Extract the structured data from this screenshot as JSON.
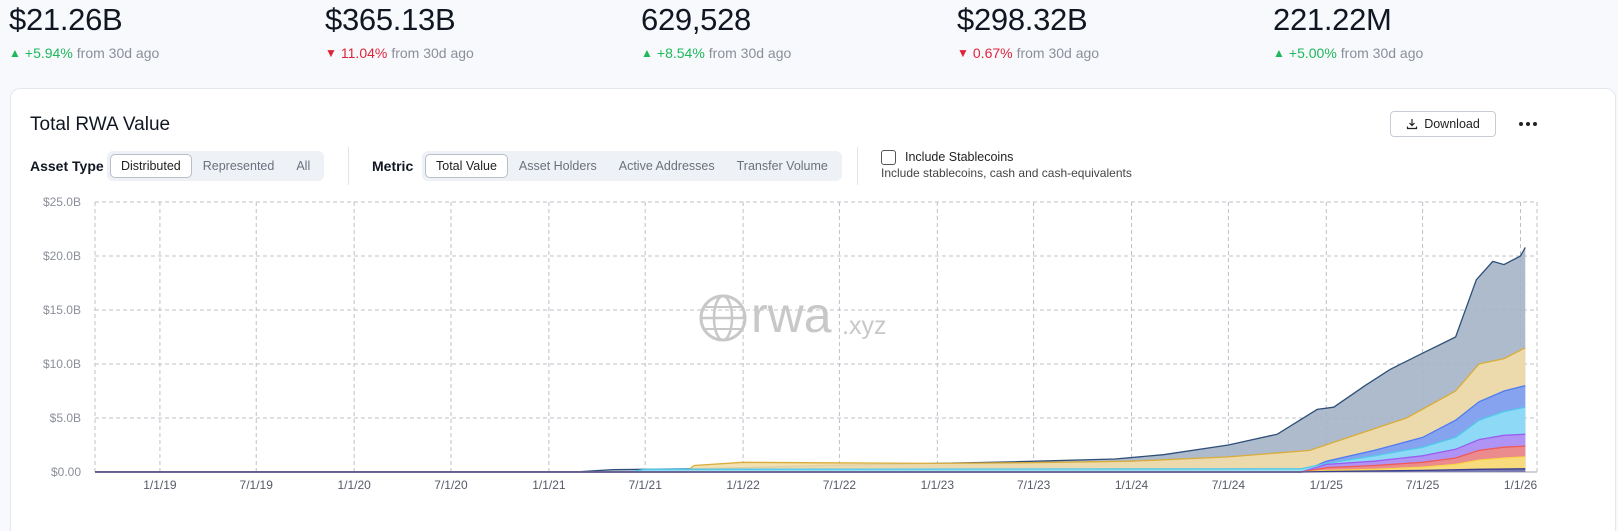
{
  "stats": [
    {
      "value": "$21.26B",
      "direction": "up",
      "change": "+5.94%",
      "suffix": "from 30d ago"
    },
    {
      "value": "$365.13B",
      "direction": "down",
      "change": "11.04%",
      "suffix": "from 30d ago"
    },
    {
      "value": "629,528",
      "direction": "up",
      "change": "+8.54%",
      "suffix": "from 30d ago"
    },
    {
      "value": "$298.32B",
      "direction": "down",
      "change": "0.67%",
      "suffix": "from 30d ago"
    },
    {
      "value": "221.22M",
      "direction": "up",
      "change": "+5.00%",
      "suffix": "from 30d ago"
    }
  ],
  "card": {
    "title": "Total RWA Value",
    "download_label": "Download",
    "more_icon": "more-horizontal-icon"
  },
  "controls": {
    "asset_type_label": "Asset Type",
    "asset_type_options": [
      "Distributed",
      "Represented",
      "All"
    ],
    "asset_type_selected": "Distributed",
    "metric_label": "Metric",
    "metric_options": [
      "Total Value",
      "Asset Holders",
      "Active Addresses",
      "Transfer Volume"
    ],
    "metric_selected": "Total Value",
    "stablecoins_label": "Include Stablecoins",
    "stablecoins_desc": "Include stablecoins, cash and cash-equivalents",
    "stablecoins_checked": false
  },
  "watermark": {
    "brand": "rwa",
    "suffix": ".xyz"
  },
  "colors": {
    "up": "#1fb85a",
    "down": "#e0243a"
  },
  "chart_data": {
    "type": "area",
    "stacked": true,
    "grid": true,
    "ylim": [
      0,
      25
    ],
    "y_unit": "B",
    "yticks": [
      {
        "value": 0,
        "label": "$0.00"
      },
      {
        "value": 5,
        "label": "$5.0B"
      },
      {
        "value": 10,
        "label": "$10.0B"
      },
      {
        "value": 15,
        "label": "$15.0B"
      },
      {
        "value": 20,
        "label": "$20.0B"
      },
      {
        "value": 25,
        "label": "$25.0B"
      }
    ],
    "xlim": [
      "2018-09-01",
      "2026-02-01"
    ],
    "xticks": [
      {
        "date": "2019-01-01",
        "label": "1/1/19"
      },
      {
        "date": "2019-07-01",
        "label": "7/1/19"
      },
      {
        "date": "2020-01-01",
        "label": "1/1/20"
      },
      {
        "date": "2020-07-01",
        "label": "7/1/20"
      },
      {
        "date": "2021-01-01",
        "label": "1/1/21"
      },
      {
        "date": "2021-07-01",
        "label": "7/1/21"
      },
      {
        "date": "2022-01-01",
        "label": "1/1/22"
      },
      {
        "date": "2022-07-01",
        "label": "7/1/22"
      },
      {
        "date": "2023-01-01",
        "label": "1/1/23"
      },
      {
        "date": "2023-07-01",
        "label": "7/1/23"
      },
      {
        "date": "2024-01-01",
        "label": "1/1/24"
      },
      {
        "date": "2024-07-01",
        "label": "7/1/24"
      },
      {
        "date": "2025-01-01",
        "label": "1/1/25"
      },
      {
        "date": "2025-07-01",
        "label": "7/1/25"
      },
      {
        "date": "2026-01-01",
        "label": "1/1/26"
      }
    ],
    "series": [
      {
        "color": "#2e4f78",
        "fill": "#a4b4c6",
        "points": [
          [
            "2018-09-01",
            0.02
          ],
          [
            "2021-03-01",
            0.03
          ],
          [
            "2021-05-01",
            0.22
          ],
          [
            "2021-10-01",
            0.3
          ],
          [
            "2022-01-01",
            0.4
          ],
          [
            "2022-06-01",
            0.6
          ],
          [
            "2023-01-01",
            0.8
          ],
          [
            "2023-06-01",
            0.95
          ],
          [
            "2023-12-01",
            1.2
          ],
          [
            "2024-03-01",
            1.6
          ],
          [
            "2024-07-01",
            2.5
          ],
          [
            "2024-10-01",
            3.5
          ],
          [
            "2024-12-15",
            5.8
          ],
          [
            "2025-01-15",
            6.0
          ],
          [
            "2025-03-15",
            8.0
          ],
          [
            "2025-05-01",
            9.5
          ],
          [
            "2025-07-01",
            11.0
          ],
          [
            "2025-09-01",
            12.5
          ],
          [
            "2025-10-10",
            17.8
          ],
          [
            "2025-11-10",
            19.5
          ],
          [
            "2025-12-01",
            19.2
          ],
          [
            "2026-01-01",
            20.0
          ],
          [
            "2026-01-10",
            20.8
          ]
        ]
      },
      {
        "color": "#d9ad3a",
        "fill": "#f3deaa",
        "points": [
          [
            "2018-09-01",
            0
          ],
          [
            "2021-09-15",
            0
          ],
          [
            "2021-10-01",
            0.6
          ],
          [
            "2022-01-01",
            0.9
          ],
          [
            "2022-06-01",
            0.85
          ],
          [
            "2023-01-01",
            0.8
          ],
          [
            "2023-06-01",
            0.85
          ],
          [
            "2024-01-01",
            1.0
          ],
          [
            "2024-07-01",
            1.4
          ],
          [
            "2024-12-01",
            2.0
          ],
          [
            "2025-03-01",
            3.5
          ],
          [
            "2025-06-01",
            5.0
          ],
          [
            "2025-09-01",
            7.5
          ],
          [
            "2025-10-15",
            10.0
          ],
          [
            "2025-12-01",
            10.5
          ],
          [
            "2026-01-10",
            11.5
          ]
        ]
      },
      {
        "color": "#4f7bf0",
        "fill": "#7b9cf7",
        "points": [
          [
            "2018-09-01",
            0
          ],
          [
            "2024-11-15",
            0
          ],
          [
            "2025-01-01",
            1.0
          ],
          [
            "2025-04-01",
            2.0
          ],
          [
            "2025-07-01",
            3.2
          ],
          [
            "2025-09-01",
            4.8
          ],
          [
            "2025-10-15",
            6.5
          ],
          [
            "2025-12-01",
            7.5
          ],
          [
            "2026-01-10",
            8.0
          ]
        ]
      },
      {
        "color": "#53c8ea",
        "fill": "#8fdff6",
        "points": [
          [
            "2018-09-01",
            0
          ],
          [
            "2021-06-01",
            0
          ],
          [
            "2021-07-01",
            0.25
          ],
          [
            "2024-11-15",
            0.3
          ],
          [
            "2025-01-01",
            0.8
          ],
          [
            "2025-04-01",
            1.5
          ],
          [
            "2025-07-01",
            2.3
          ],
          [
            "2025-09-01",
            3.2
          ],
          [
            "2025-10-15",
            4.8
          ],
          [
            "2025-12-01",
            5.6
          ],
          [
            "2026-01-10",
            6.0
          ]
        ]
      },
      {
        "color": "#9b5cf0",
        "fill": "#b48cf5",
        "points": [
          [
            "2018-09-01",
            0
          ],
          [
            "2024-11-15",
            0
          ],
          [
            "2025-01-01",
            0.7
          ],
          [
            "2025-04-01",
            1.0
          ],
          [
            "2025-07-01",
            1.5
          ],
          [
            "2025-09-01",
            2.1
          ],
          [
            "2025-10-15",
            3.0
          ],
          [
            "2025-12-01",
            3.4
          ],
          [
            "2026-01-10",
            3.5
          ]
        ]
      },
      {
        "color": "#ef5b57",
        "fill": "#f28a83",
        "points": [
          [
            "2018-09-01",
            0
          ],
          [
            "2024-11-15",
            0
          ],
          [
            "2025-01-01",
            0.4
          ],
          [
            "2025-04-01",
            0.6
          ],
          [
            "2025-07-01",
            0.9
          ],
          [
            "2025-09-01",
            1.3
          ],
          [
            "2025-10-15",
            2.0
          ],
          [
            "2025-12-01",
            2.3
          ],
          [
            "2026-01-10",
            2.4
          ]
        ]
      },
      {
        "color": "#f7d64a",
        "fill": "#f9e37a",
        "points": [
          [
            "2018-09-01",
            0
          ],
          [
            "2024-11-15",
            0
          ],
          [
            "2025-01-01",
            0.15
          ],
          [
            "2025-04-01",
            0.25
          ],
          [
            "2025-07-01",
            0.45
          ],
          [
            "2025-09-01",
            0.7
          ],
          [
            "2025-10-15",
            1.1
          ],
          [
            "2025-12-01",
            1.3
          ],
          [
            "2026-01-10",
            1.4
          ]
        ]
      },
      {
        "color": "#3a3f8f",
        "fill": "#6a6fb8",
        "points": [
          [
            "2018-09-01",
            0
          ],
          [
            "2024-11-15",
            0
          ],
          [
            "2025-01-01",
            0.05
          ],
          [
            "2025-07-01",
            0.15
          ],
          [
            "2025-10-15",
            0.25
          ],
          [
            "2026-01-10",
            0.3
          ]
        ]
      }
    ]
  }
}
